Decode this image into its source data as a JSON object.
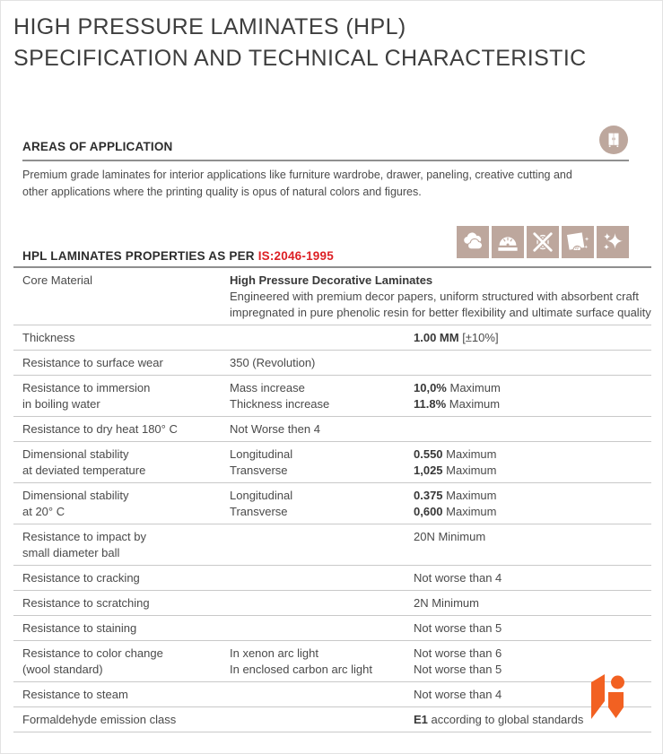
{
  "title": {
    "line1": "HIGH PRESSURE LAMINATES (HPL)",
    "line2": "SPECIFICATION AND TECHNICAL CHARACTERISTIC"
  },
  "areas_of_application": {
    "heading": "AREAS OF APPLICATION",
    "description": "Premium grade laminates for interior applications like furniture wardrobe, drawer, paneling, creative cutting and other applications where the printing quality is opus of natural colors and figures.",
    "icon": "wardrobe"
  },
  "properties_section": {
    "heading_prefix": "HPL LAMINATES PROPERTIES AS PER ",
    "standard_code": "IS:2046-1995",
    "feature_icons": [
      "clouds",
      "abrasion-disc",
      "anti-fingerprint",
      "easy-clean",
      "shine"
    ]
  },
  "colors": {
    "accent_red": "#dd2025",
    "icon_tan": "#bda79d",
    "logo_orange": "#f26122",
    "text_dark": "#3e3e3e",
    "text_body": "#4b4b4b"
  },
  "table": {
    "rows": [
      {
        "property": [
          "Core Material"
        ],
        "middle": [
          {
            "b": "High Pressure Decorative Laminates"
          },
          {
            "t": "Engineered with premium decor papers, uniform structured with absorbent craft"
          },
          {
            "t": "impregnated in pure phenolic resin for better flexibility and ultimate surface quality"
          }
        ],
        "value": []
      },
      {
        "property": [
          "Thickness"
        ],
        "middle": [],
        "value": [
          {
            "b": "1.00 MM",
            "t": "  [±10%]"
          }
        ]
      },
      {
        "property": [
          "Resistance to surface wear"
        ],
        "middle": [
          {
            "t": "350 (Revolution)"
          }
        ],
        "value": []
      },
      {
        "property": [
          "Resistance to immersion",
          "in boiling water"
        ],
        "middle": [
          {
            "t": "Mass increase"
          },
          {
            "t": "Thickness increase"
          }
        ],
        "value": [
          {
            "b": "10,0%",
            "t": " Maximum"
          },
          {
            "b": "11.8%",
            "t": " Maximum"
          }
        ]
      },
      {
        "property": [
          "Resistance to dry heat 180° C"
        ],
        "middle": [
          {
            "t": "Not Worse then 4"
          }
        ],
        "value": []
      },
      {
        "property": [
          "Dimensional stability",
          "at deviated temperature"
        ],
        "middle": [
          {
            "t": "Longitudinal"
          },
          {
            "t": "Transverse"
          }
        ],
        "value": [
          {
            "b": "0.550",
            "t": " Maximum"
          },
          {
            "b": "1,025",
            "t": " Maximum"
          }
        ]
      },
      {
        "property": [
          "Dimensional stability",
          "at 20° C"
        ],
        "middle": [
          {
            "t": "Longitudinal"
          },
          {
            "t": "Transverse"
          }
        ],
        "value": [
          {
            "b": "0.375",
            "t": " Maximum"
          },
          {
            "b": "0,600",
            "t": " Maximum"
          }
        ]
      },
      {
        "property": [
          "Resistance to impact by",
          "small diameter ball"
        ],
        "middle": [],
        "value": [
          {
            "t": "20N Minimum"
          }
        ]
      },
      {
        "property": [
          "Resistance to cracking"
        ],
        "middle": [],
        "value": [
          {
            "t": "Not worse than 4"
          }
        ]
      },
      {
        "property": [
          "Resistance to scratching"
        ],
        "middle": [],
        "value": [
          {
            "t": "2N Minimum"
          }
        ]
      },
      {
        "property": [
          "Resistance to staining"
        ],
        "middle": [],
        "value": [
          {
            "t": "Not worse than 5"
          }
        ]
      },
      {
        "property": [
          "Resistance to color change",
          "(wool standard)"
        ],
        "middle": [
          {
            "t": "In xenon arc light"
          },
          {
            "t": "In enclosed carbon arc light"
          }
        ],
        "value": [
          {
            "t": "Not worse than 6"
          },
          {
            "t": "Not worse than 5"
          }
        ]
      },
      {
        "property": [
          "Resistance to steam"
        ],
        "middle": [],
        "value": [
          {
            "t": "Not worse than 4"
          }
        ]
      },
      {
        "property": [
          "Formaldehyde emission class"
        ],
        "middle": [],
        "value": [
          {
            "b": "E1",
            "t": "  according to global standards"
          }
        ]
      }
    ]
  }
}
